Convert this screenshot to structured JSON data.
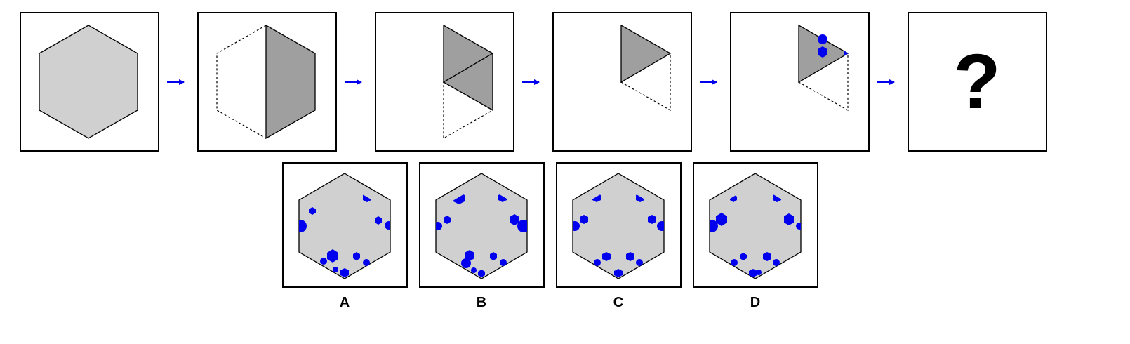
{
  "sequence": {
    "step_count": 5,
    "question_mark": "?"
  },
  "options": [
    {
      "label": "A"
    },
    {
      "label": "B"
    },
    {
      "label": "C"
    },
    {
      "label": "D"
    }
  ],
  "colors": {
    "hex_fill": "#d0d0d0",
    "folded_fill": "#9f9f9f",
    "dot_color": "#0000ee",
    "arrow_color": "#0000ee",
    "outline": "#000000"
  }
}
